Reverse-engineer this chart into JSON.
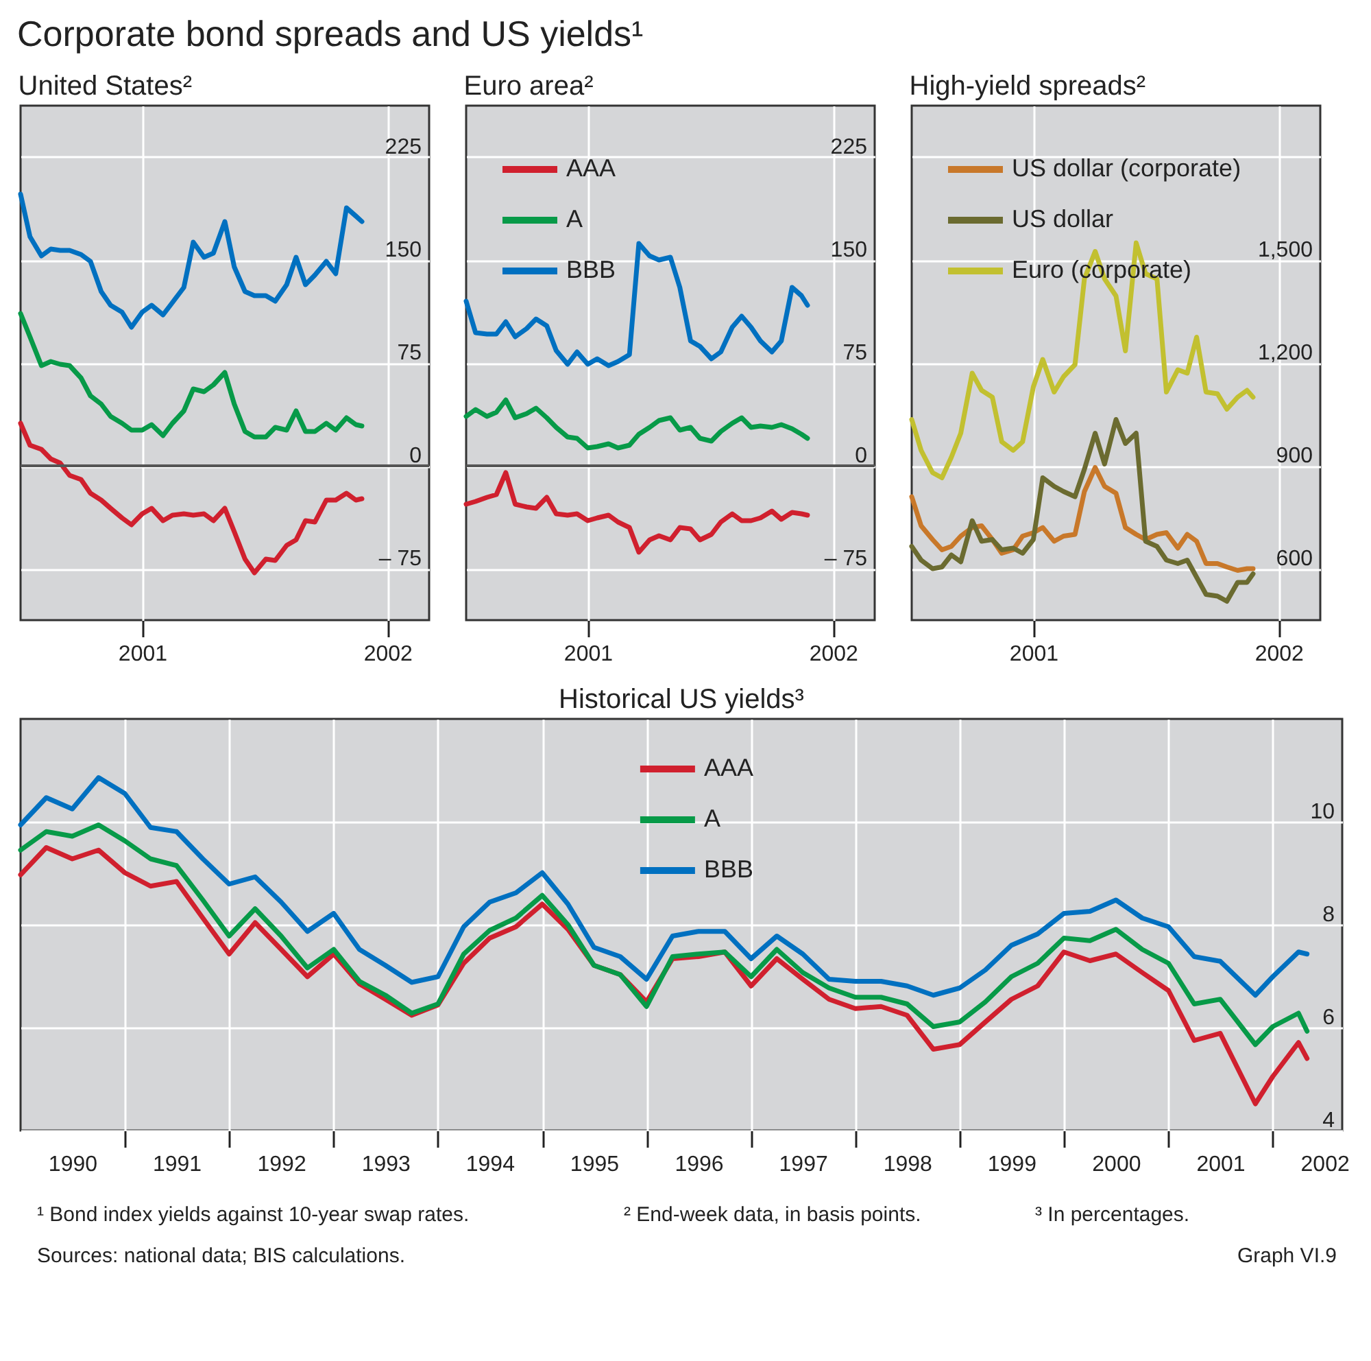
{
  "chart_data": [
    {
      "type": "line",
      "title": "United States²",
      "x": [
        "2001-01-01",
        "2001-01-15",
        "2001-02-01",
        "2001-02-15",
        "2001-03-01",
        "2001-03-15",
        "2001-04-01",
        "2001-04-15",
        "2001-05-01",
        "2001-05-15",
        "2001-06-01",
        "2001-06-15",
        "2001-07-01",
        "2001-07-15",
        "2001-08-01",
        "2001-08-15",
        "2001-09-01",
        "2001-09-15",
        "2001-10-01",
        "2001-10-15",
        "2001-11-01",
        "2001-11-15",
        "2001-12-01",
        "2001-12-15",
        "2002-01-01",
        "2002-01-15",
        "2002-02-01",
        "2002-02-15",
        "2002-03-01",
        "2002-03-15",
        "2002-04-01",
        "2002-04-15",
        "2002-05-01",
        "2002-05-15",
        "2002-05-24"
      ],
      "series": [
        {
          "color": "#d0202e",
          "values": [
            31,
            15,
            12,
            5,
            2,
            -7,
            -10,
            -20,
            -25,
            -31,
            -38,
            -43,
            -35,
            -31,
            -40,
            -36,
            -35,
            -36,
            -35,
            -40,
            -31,
            -48,
            -68,
            -78,
            -68,
            -69,
            -58,
            -54,
            -40,
            -41,
            -25,
            -25,
            -20,
            -25,
            -24
          ]
        },
        {
          "color": "#079a48",
          "values": [
            111,
            94,
            73,
            76,
            74,
            73,
            64,
            51,
            45,
            36,
            31,
            26,
            26,
            30,
            22,
            31,
            40,
            56,
            54,
            59,
            68,
            45,
            25,
            21,
            21,
            28,
            26,
            40,
            25,
            25,
            31,
            26,
            35,
            30,
            29
          ]
        },
        {
          "color": "#0070c0",
          "values": [
            198,
            167,
            153,
            158,
            157,
            157,
            154,
            149,
            127,
            117,
            112,
            101,
            112,
            117,
            110,
            119,
            130,
            163,
            152,
            155,
            178,
            145,
            127,
            124,
            124,
            120,
            132,
            152,
            132,
            139,
            149,
            140,
            188,
            182,
            178
          ]
        }
      ],
      "xlim": [
        "2001-01-01",
        "2002-09-01"
      ],
      "xticks": [
        {
          "value": "2001-07-01",
          "label": "2001"
        },
        {
          "value": "2002-07-01",
          "label": "2002"
        }
      ],
      "ylim": [
        -112.5,
        262.5
      ],
      "yticks": [
        {
          "value": -75,
          "label": "– 75"
        },
        0,
        75,
        150,
        225
      ],
      "ref_lines": [
        {
          "axis": "y",
          "value": 0,
          "color": "#555555"
        }
      ],
      "grid": true
    },
    {
      "type": "line",
      "title": "Euro area²",
      "x": [
        "2001-01-01",
        "2001-01-15",
        "2001-02-01",
        "2001-02-15",
        "2001-03-01",
        "2001-03-15",
        "2001-04-01",
        "2001-04-15",
        "2001-05-01",
        "2001-05-15",
        "2001-06-01",
        "2001-06-15",
        "2001-07-01",
        "2001-07-15",
        "2001-08-01",
        "2001-08-15",
        "2001-09-01",
        "2001-09-15",
        "2001-10-01",
        "2001-10-15",
        "2001-11-01",
        "2001-11-15",
        "2001-12-01",
        "2001-12-15",
        "2002-01-01",
        "2002-01-15",
        "2002-02-01",
        "2002-02-15",
        "2002-03-01",
        "2002-03-15",
        "2002-04-01",
        "2002-04-15",
        "2002-05-01",
        "2002-05-15",
        "2002-05-24"
      ],
      "series": [
        {
          "name": "AAA",
          "color": "#d0202e",
          "values": [
            -28,
            -26,
            -23,
            -21,
            -5,
            -28,
            -30,
            -31,
            -23,
            -35,
            -36,
            -35,
            -40,
            -38,
            -36,
            -41,
            -45,
            -63,
            -54,
            -51,
            -54,
            -45,
            -46,
            -54,
            -50,
            -41,
            -35,
            -40,
            -40,
            -38,
            -33,
            -39,
            -34,
            -35,
            -36
          ]
        },
        {
          "name": "A",
          "color": "#079a48",
          "values": [
            36,
            41,
            36,
            39,
            48,
            35,
            38,
            42,
            35,
            28,
            21,
            20,
            13,
            14,
            16,
            13,
            15,
            23,
            28,
            33,
            35,
            26,
            28,
            20,
            18,
            25,
            31,
            35,
            28,
            29,
            28,
            30,
            27,
            23,
            20
          ]
        },
        {
          "name": "BBB",
          "color": "#0070c0",
          "values": [
            120,
            97,
            96,
            96,
            105,
            94,
            100,
            107,
            102,
            84,
            74,
            83,
            74,
            78,
            73,
            76,
            81,
            162,
            153,
            150,
            152,
            130,
            91,
            87,
            78,
            83,
            101,
            109,
            101,
            91,
            83,
            91,
            130,
            124,
            117
          ]
        }
      ],
      "xlim": [
        "2001-01-01",
        "2002-09-01"
      ],
      "xticks": [
        {
          "value": "2001-07-01",
          "label": "2001"
        },
        {
          "value": "2002-07-01",
          "label": "2002"
        }
      ],
      "ylim": [
        -112.5,
        262.5
      ],
      "yticks": [
        {
          "value": -75,
          "label": "– 75"
        },
        0,
        75,
        150,
        225
      ],
      "ref_lines": [
        {
          "axis": "y",
          "value": 0,
          "color": "#555555"
        }
      ],
      "grid": true,
      "legend": "top left"
    },
    {
      "type": "line",
      "title": "High-yield spreads²",
      "x": [
        "2001-01-01",
        "2001-01-15",
        "2001-02-01",
        "2001-02-15",
        "2001-03-01",
        "2001-03-15",
        "2001-04-01",
        "2001-04-15",
        "2001-05-01",
        "2001-05-15",
        "2001-06-01",
        "2001-06-15",
        "2001-07-01",
        "2001-07-15",
        "2001-08-01",
        "2001-08-15",
        "2001-09-01",
        "2001-09-15",
        "2001-10-01",
        "2001-10-15",
        "2001-11-01",
        "2001-11-15",
        "2001-12-01",
        "2001-12-15",
        "2002-01-01",
        "2002-01-15",
        "2002-02-01",
        "2002-02-15",
        "2002-03-01",
        "2002-03-15",
        "2002-04-01",
        "2002-04-15",
        "2002-05-01",
        "2002-05-15",
        "2002-05-24"
      ],
      "series": [
        {
          "name": "US dollar (corporate)",
          "color": "#c8782a",
          "values": [
            810,
            725,
            685,
            655,
            665,
            695,
            720,
            725,
            685,
            645,
            655,
            695,
            705,
            720,
            680,
            695,
            700,
            825,
            895,
            840,
            820,
            720,
            700,
            685,
            700,
            705,
            660,
            700,
            680,
            615,
            615,
            605,
            595,
            600,
            600
          ]
        },
        {
          "name": "US dollar",
          "color": "#6b6b30",
          "values": [
            665,
            625,
            600,
            605,
            640,
            620,
            740,
            680,
            685,
            655,
            660,
            645,
            685,
            865,
            840,
            825,
            810,
            890,
            995,
            905,
            1035,
            965,
            995,
            680,
            665,
            625,
            615,
            625,
            575,
            525,
            520,
            505,
            560,
            560,
            585
          ]
        },
        {
          "name": "Euro (corporate)",
          "color": "#c2c030",
          "values": [
            1035,
            945,
            880,
            865,
            925,
            995,
            1170,
            1120,
            1100,
            970,
            945,
            970,
            1130,
            1210,
            1115,
            1160,
            1195,
            1445,
            1525,
            1445,
            1395,
            1235,
            1550,
            1460,
            1445,
            1115,
            1180,
            1170,
            1275,
            1115,
            1110,
            1065,
            1100,
            1120,
            1100
          ]
        }
      ],
      "xlim": [
        "2001-01-01",
        "2002-09-01"
      ],
      "xticks": [
        {
          "value": "2001-07-01",
          "label": "2001"
        },
        {
          "value": "2002-07-01",
          "label": "2002"
        }
      ],
      "ylim": [
        450,
        1950
      ],
      "yticks": [
        600,
        900,
        {
          "value": 1200,
          "label": "1,200"
        },
        {
          "value": 1500,
          "label": "1,500"
        },
        {
          "value": 1800,
          "label": null
        }
      ],
      "grid": true,
      "legend": "top left"
    },
    {
      "type": "line",
      "title": "Historical US yields³",
      "x": [
        "1990-01",
        "1990-04",
        "1990-07",
        "1990-10",
        "1991-01",
        "1991-04",
        "1991-07",
        "1991-10",
        "1992-01",
        "1992-04",
        "1992-07",
        "1992-10",
        "1993-01",
        "1993-04",
        "1993-07",
        "1993-10",
        "1994-01",
        "1994-04",
        "1994-07",
        "1994-10",
        "1995-01",
        "1995-04",
        "1995-07",
        "1995-10",
        "1996-01",
        "1996-04",
        "1996-07",
        "1996-10",
        "1997-01",
        "1997-04",
        "1997-07",
        "1997-10",
        "1998-01",
        "1998-04",
        "1998-07",
        "1998-10",
        "1999-01",
        "1999-04",
        "1999-07",
        "1999-10",
        "2000-01",
        "2000-04",
        "2000-07",
        "2000-10",
        "2001-01",
        "2001-04",
        "2001-07",
        "2001-11",
        "2002-01",
        "2002-04",
        "2002-05"
      ],
      "series": [
        {
          "name": "AAA",
          "color": "#d0202e",
          "values": [
            8.97,
            9.5,
            9.28,
            9.45,
            9.01,
            8.75,
            8.84,
            8.13,
            7.43,
            8.04,
            7.52,
            6.99,
            7.43,
            6.85,
            6.55,
            6.24,
            6.44,
            7.25,
            7.74,
            7.96,
            8.4,
            7.91,
            7.21,
            7.03,
            6.5,
            7.34,
            7.38,
            7.47,
            6.81,
            7.34,
            6.94,
            6.55,
            6.37,
            6.41,
            6.24,
            5.58,
            5.67,
            6.11,
            6.55,
            6.81,
            7.47,
            7.3,
            7.43,
            7.07,
            6.72,
            5.75,
            5.89,
            4.52,
            5.05,
            5.71,
            5.4
          ]
        },
        {
          "name": "A",
          "color": "#079a48",
          "values": [
            9.45,
            9.81,
            9.72,
            9.94,
            9.63,
            9.28,
            9.15,
            8.48,
            7.78,
            8.31,
            7.78,
            7.16,
            7.52,
            6.9,
            6.63,
            6.28,
            6.46,
            7.43,
            7.89,
            8.13,
            8.57,
            8.0,
            7.21,
            7.03,
            6.41,
            7.38,
            7.43,
            7.47,
            6.99,
            7.52,
            7.07,
            6.77,
            6.59,
            6.59,
            6.46,
            6.02,
            6.11,
            6.5,
            6.99,
            7.25,
            7.74,
            7.69,
            7.91,
            7.52,
            7.25,
            6.46,
            6.55,
            5.67,
            6.02,
            6.28,
            5.93
          ]
        },
        {
          "name": "BBB",
          "color": "#0070c0",
          "values": [
            9.94,
            10.47,
            10.25,
            10.86,
            10.55,
            9.89,
            9.81,
            9.28,
            8.79,
            8.93,
            8.44,
            7.87,
            8.22,
            7.52,
            7.21,
            6.88,
            6.99,
            7.96,
            8.44,
            8.62,
            9.01,
            8.4,
            7.56,
            7.38,
            6.94,
            7.78,
            7.87,
            7.87,
            7.34,
            7.78,
            7.43,
            6.94,
            6.9,
            6.9,
            6.81,
            6.63,
            6.77,
            7.12,
            7.6,
            7.82,
            8.22,
            8.26,
            8.48,
            8.13,
            7.96,
            7.38,
            7.29,
            6.63,
            6.99,
            7.47,
            7.43
          ]
        }
      ],
      "xlim": [
        "1990-01-01",
        "2002-09-01"
      ],
      "xticks": [
        {
          "value": "1990-07-01",
          "label": "1990"
        },
        {
          "value": "1991-01-01",
          "label": null
        },
        {
          "value": "1991-07-01",
          "label": "1991"
        },
        {
          "value": "1992-01-01",
          "label": null
        },
        {
          "value": "1992-07-01",
          "label": "1992"
        },
        {
          "value": "1993-01-01",
          "label": null
        },
        {
          "value": "1993-07-01",
          "label": "1993"
        },
        {
          "value": "1994-01-01",
          "label": null
        },
        {
          "value": "1994-07-01",
          "label": "1994"
        },
        {
          "value": "1995-01-01",
          "label": null
        },
        {
          "value": "1995-07-01",
          "label": "1995"
        },
        {
          "value": "1996-01-01",
          "label": null
        },
        {
          "value": "1996-07-01",
          "label": "1996"
        },
        {
          "value": "1997-01-01",
          "label": null
        },
        {
          "value": "1997-07-01",
          "label": "1997"
        },
        {
          "value": "1998-01-01",
          "label": null
        },
        {
          "value": "1998-07-01",
          "label": "1998"
        },
        {
          "value": "1999-01-01",
          "label": null
        },
        {
          "value": "1999-07-01",
          "label": "1999"
        },
        {
          "value": "2000-01-01",
          "label": null
        },
        {
          "value": "2000-07-01",
          "label": "2000"
        },
        {
          "value": "2001-01-01",
          "label": null
        },
        {
          "value": "2001-07-01",
          "label": "2001"
        },
        {
          "value": "2002-01-01",
          "label": null
        },
        {
          "value": "2002-07-01",
          "label": "2002"
        }
      ],
      "ylim": [
        4,
        12
      ],
      "yticks": [
        4,
        6,
        8,
        10
      ],
      "grid": true,
      "legend": "top"
    },
    {
      "type": "other",
      "title": "Corporate bond spreads and US yields¹",
      "annotations": [
        "¹ Bond index yields against 10-year swap rates.",
        "² End-week data, in basis points.",
        "³ In percentages.",
        "Sources: national data; BIS calculations.",
        "Graph VI.9"
      ]
    }
  ]
}
